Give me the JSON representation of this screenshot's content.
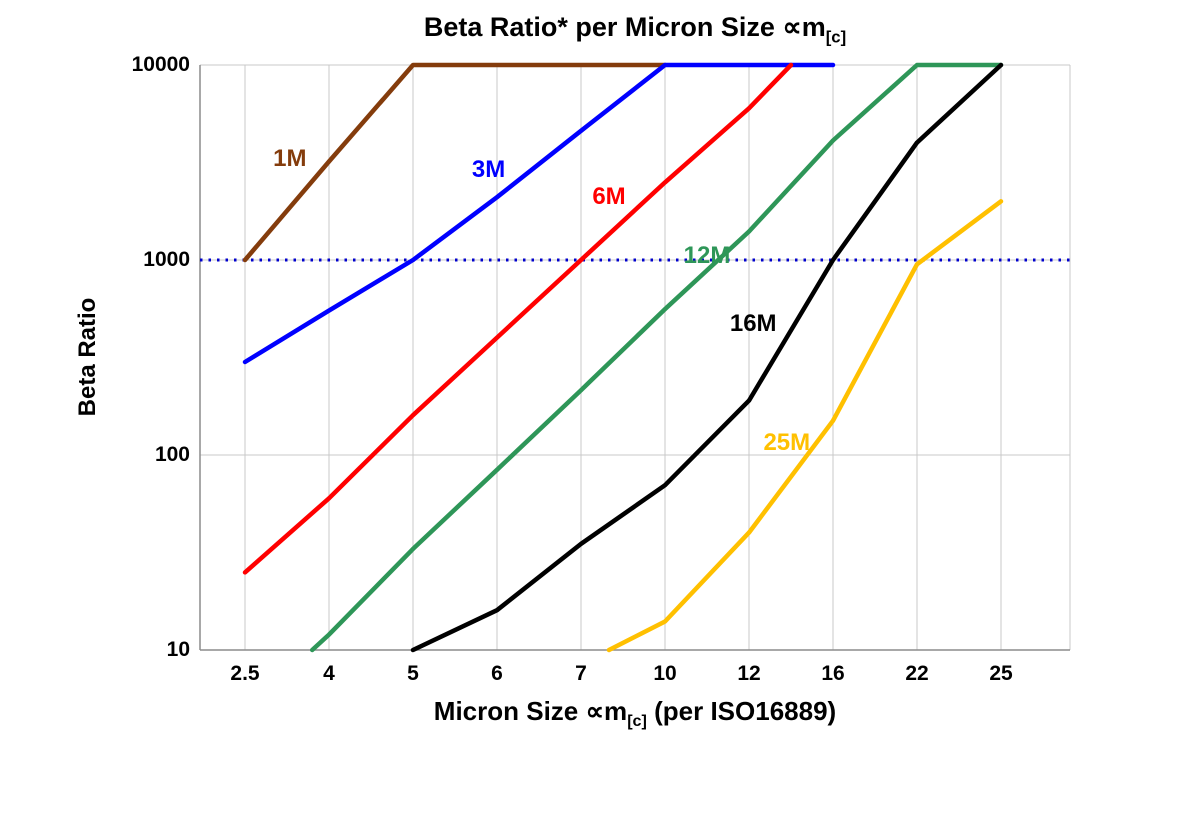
{
  "title": {
    "prefix": "Beta Ratio* per Micron Size ",
    "symbol": "∝m",
    "subscript": "[c]"
  },
  "axes": {
    "y_label": "Beta Ratio",
    "x_label_prefix": "Micron Size ",
    "x_label_symbol": "∝m",
    "x_label_subscript": "[c]",
    "x_label_suffix": " (per ISO16889)",
    "y_ticks": [
      "10000",
      "1000",
      "100",
      "10"
    ],
    "x_ticks": [
      "2.5",
      "4",
      "5",
      "6",
      "7",
      "10",
      "12",
      "16",
      "22",
      "25"
    ]
  },
  "chart_data": {
    "type": "line",
    "title": "Beta Ratio* per Micron Size ∝m[c]",
    "xlabel": "Micron Size ∝m[c] (per ISO16889)",
    "ylabel": "Beta Ratio",
    "x_scale": "categorical",
    "y_scale": "log",
    "categories": [
      2.5,
      4,
      5,
      6,
      7,
      10,
      12,
      16,
      22,
      25
    ],
    "ylim": [
      10,
      10000
    ],
    "grid": true,
    "grid_color": "#c9c9c9",
    "axis_color": "#8c8c8c",
    "reference_line": {
      "y": 1000,
      "color": "#0000CC",
      "style": "dotted"
    },
    "series": [
      {
        "name": "1M",
        "color": "#843C0C",
        "label_at": {
          "x": 3.3,
          "y": 3300
        },
        "points": [
          [
            2.5,
            1000
          ],
          [
            4,
            3200
          ],
          [
            5,
            10000
          ],
          [
            10,
            10000
          ]
        ]
      },
      {
        "name": "3M",
        "color": "#0000FF",
        "label_at": {
          "x": 5.9,
          "y": 2900
        },
        "points": [
          [
            2.5,
            300
          ],
          [
            4,
            550
          ],
          [
            5,
            1000
          ],
          [
            6,
            2100
          ],
          [
            7,
            4600
          ],
          [
            10,
            10000
          ],
          [
            16,
            10000
          ]
        ]
      },
      {
        "name": "6M",
        "color": "#FF0000",
        "label_at": {
          "x": 8.0,
          "y": 2100
        },
        "points": [
          [
            2.5,
            25
          ],
          [
            4,
            60
          ],
          [
            5,
            160
          ],
          [
            6,
            400
          ],
          [
            7,
            1000
          ],
          [
            10,
            2500
          ],
          [
            12,
            6000
          ],
          [
            14,
            10000
          ]
        ]
      },
      {
        "name": "12M",
        "color": "#2E9658",
        "label_at": {
          "x": 11.0,
          "y": 1050
        },
        "points": [
          [
            3.7,
            10
          ],
          [
            4,
            12
          ],
          [
            5,
            33
          ],
          [
            6,
            84
          ],
          [
            7,
            215
          ],
          [
            10,
            560
          ],
          [
            12,
            1400
          ],
          [
            16,
            4100
          ],
          [
            22,
            10000
          ],
          [
            25,
            10000
          ]
        ]
      },
      {
        "name": "16M",
        "color": "#000000",
        "label_at": {
          "x": 12.2,
          "y": 470
        },
        "points": [
          [
            5,
            10
          ],
          [
            6,
            16
          ],
          [
            7,
            35
          ],
          [
            10,
            70
          ],
          [
            12,
            190
          ],
          [
            16,
            1000
          ],
          [
            22,
            4000
          ],
          [
            25,
            10000
          ]
        ]
      },
      {
        "name": "25M",
        "color": "#FFC000",
        "label_at": {
          "x": 13.8,
          "y": 115
        },
        "points": [
          [
            8,
            10
          ],
          [
            10,
            14
          ],
          [
            12,
            40
          ],
          [
            16,
            150
          ],
          [
            22,
            950
          ],
          [
            25,
            2000
          ]
        ]
      }
    ]
  }
}
